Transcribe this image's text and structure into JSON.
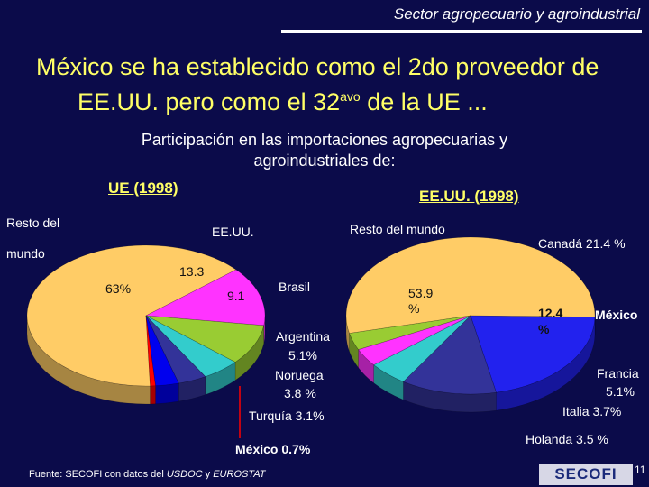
{
  "header": {
    "section": "Sector agropecuario y agroindustrial",
    "headline_line1": "México se ha establecido como el 2do proveedor de",
    "headline_line2_pre": "EE.UU. pero como el 32",
    "headline_line2_sup": "avo",
    "headline_line2_post": " de la UE ...",
    "subtitle_line1": "Participación en las importaciones agropecuarias  y",
    "subtitle_line2": "agroindustriales de:"
  },
  "chart_data": [
    {
      "type": "pie",
      "title": "UE (1998)",
      "slices": [
        {
          "name": "Resto del mundo",
          "label": "63%",
          "value": 63,
          "color": "#ffcc66"
        },
        {
          "name": "EE.UU.",
          "label": "13.3",
          "value": 13.3,
          "color": "#ff33ff"
        },
        {
          "name": "Brasil",
          "label": "9.1",
          "value": 9.1,
          "color": "#99cc33"
        },
        {
          "name": "Argentina",
          "label": "5.1%",
          "value": 5.1,
          "color": "#33cccc"
        },
        {
          "name": "Noruega",
          "label": "3.8 %",
          "value": 3.8,
          "color": "#333399"
        },
        {
          "name": "Turquía",
          "label": "3.1%",
          "value": 3.1,
          "color": "#0000ee"
        },
        {
          "name": "México",
          "label": "0.7%",
          "value": 0.7,
          "color": "#ff0000"
        }
      ]
    },
    {
      "type": "pie",
      "title": "EE.UU. (1998)",
      "slices": [
        {
          "name": "Resto del mundo",
          "label": "53.9 %",
          "value": 53.9,
          "color": "#ffcc66"
        },
        {
          "name": "Canadá",
          "label": "21.4 %",
          "value": 21.4,
          "color": "#2222ee"
        },
        {
          "name": "México",
          "label": "12.4 %",
          "value": 12.4,
          "color": "#333399"
        },
        {
          "name": "Francia",
          "label": "5.1%",
          "value": 5.1,
          "color": "#33cccc"
        },
        {
          "name": "Italia",
          "label": "3.7%",
          "value": 3.7,
          "color": "#ff33ff"
        },
        {
          "name": "Holanda",
          "label": "3.5 %",
          "value": 3.5,
          "color": "#99cc33"
        }
      ]
    }
  ],
  "labels": {
    "ue_resto_line1": "Resto del",
    "ue_resto_line2": "mundo",
    "ue_resto_value": "63%",
    "ue_eeuu_name": "EE.UU.",
    "ue_eeuu_value": "13.3",
    "ue_brasil_name": "Brasil",
    "ue_brasil_value": "9.1",
    "ue_argentina_name": "Argentina",
    "ue_argentina_value": "5.1%",
    "ue_noruega_name": "Noruega",
    "ue_noruega_value": "3.8 %",
    "ue_turquia": "Turquía 3.1%",
    "ue_mexico": "México 0.7%",
    "us_resto": "Resto del mundo",
    "us_resto_value_1": "53.9",
    "us_resto_value_2": "%",
    "us_canada": "Canadá 21.4 %",
    "us_mexico_value_1": "12.4",
    "us_mexico_value_2": "%",
    "us_mexico_name": "México",
    "us_francia_name": "Francia",
    "us_francia_value": "5.1%",
    "us_italia": "Italia 3.7%",
    "us_holanda": "Holanda 3.5 %"
  },
  "footer": {
    "source_pre": "Fuente: SECOFI con datos del ",
    "source_usdoc": "USDOC",
    "source_mid": " y ",
    "source_eurostat": "EUROSTAT",
    "logo_text": "SECOFI",
    "page": "11"
  }
}
